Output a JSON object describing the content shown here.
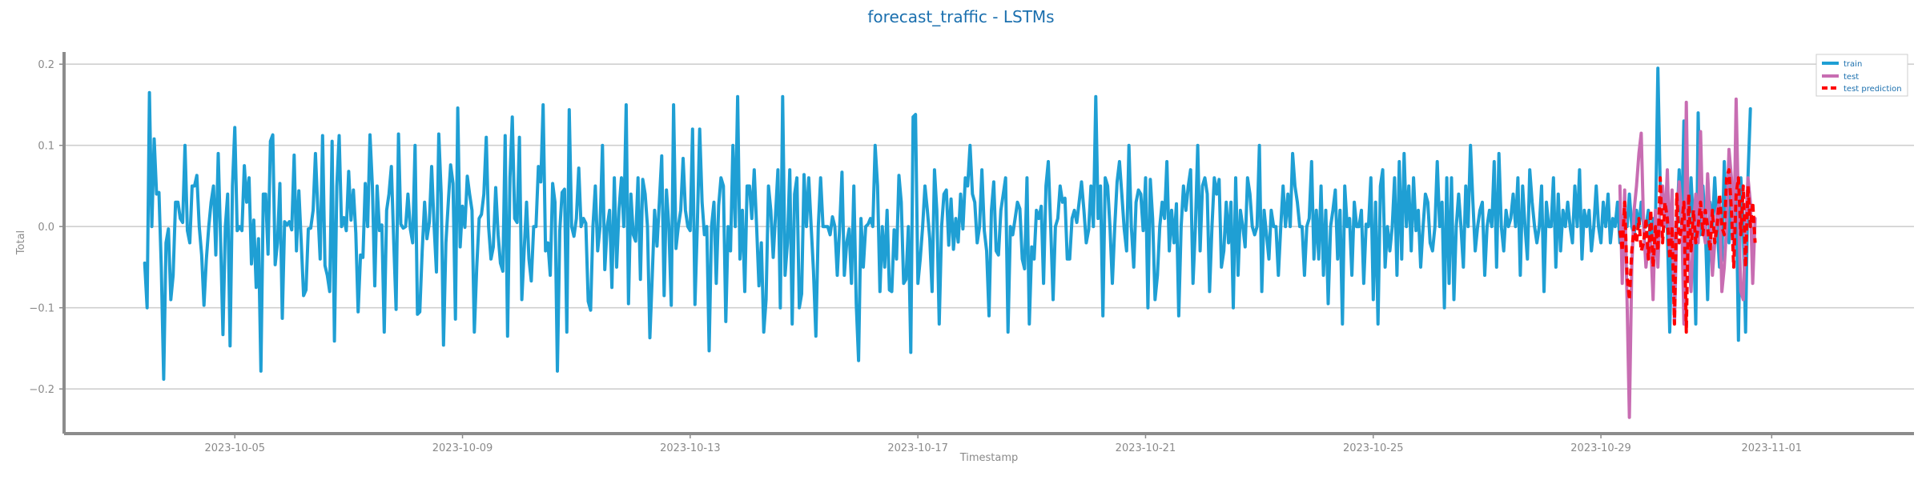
{
  "chart_data": {
    "type": "line",
    "title": "forecast_traffic - LSTMs",
    "xlabel": "Timestamp",
    "ylabel": "Total",
    "ylim": [
      -0.255,
      0.215
    ],
    "xlim": [
      "2023-10-02T00:00",
      "2023-11-03T12:00"
    ],
    "grid": "horizontal",
    "legend_position": "top-right",
    "y_ticks": [
      0.2,
      0.1,
      0.0,
      -0.1,
      -0.2
    ],
    "y_tick_labels": [
      "0.2",
      "0.1",
      "0.0",
      "−0.1",
      "−0.2"
    ],
    "x_ticks": [
      "2023-10-05",
      "2023-10-09",
      "2023-10-13",
      "2023-10-17",
      "2023-10-21",
      "2023-10-25",
      "2023-10-29",
      "2023-11-01"
    ],
    "series": [
      {
        "name": "train",
        "color": "#1f9fd4",
        "style": "solid",
        "start": "2023-10-03T10:00",
        "step_hours": 1,
        "values": [
          -0.045,
          -0.1,
          0.165,
          0.0,
          0.108,
          0.04,
          0.042,
          -0.05,
          -0.188,
          -0.02,
          -0.003,
          -0.09,
          -0.06,
          0.03,
          0.03,
          0.01,
          0.005,
          0.1,
          -0.005,
          -0.02,
          0.05,
          0.05,
          0.063,
          0.0,
          -0.035,
          -0.097,
          -0.04,
          0.0,
          0.03,
          0.05,
          -0.035,
          0.09,
          -0.018,
          -0.133,
          0.0,
          0.04,
          -0.147,
          0.05,
          0.122,
          -0.005,
          0.0,
          -0.005,
          0.075,
          0.03,
          0.06,
          -0.046,
          0.008,
          -0.075,
          -0.015,
          -0.178,
          0.04,
          0.04,
          -0.034,
          0.105,
          0.113,
          -0.047,
          -0.02,
          0.053,
          -0.113,
          0.006,
          0.002,
          0.006,
          -0.004,
          0.088,
          -0.03,
          0.044,
          -0.02,
          -0.085,
          -0.078,
          -0.003,
          -0.002,
          0.02,
          0.09,
          0.02,
          -0.04,
          0.112,
          -0.048,
          -0.06,
          -0.08,
          0.105,
          -0.141,
          0.05,
          0.112,
          0.0,
          0.011,
          -0.005,
          0.068,
          0.008,
          0.045,
          -0.008,
          -0.105,
          -0.035,
          -0.038,
          0.053,
          0.0,
          0.113,
          0.05,
          -0.073,
          0.05,
          -0.005,
          0.002,
          -0.13,
          0.02,
          0.04,
          0.074,
          -0.02,
          -0.102,
          0.114,
          0.003,
          -0.002,
          0.0,
          0.04,
          -0.003,
          -0.02,
          0.1,
          -0.108,
          -0.105,
          -0.03,
          0.03,
          -0.015,
          0.005,
          0.074,
          0.002,
          -0.056,
          0.114,
          0.041,
          -0.146,
          -0.02,
          0.03,
          0.076,
          0.053,
          -0.114,
          0.146,
          -0.025,
          0.025,
          -0.001,
          0.062,
          0.04,
          0.02,
          -0.13,
          -0.05,
          0.01,
          0.015,
          0.04,
          0.11,
          0.0,
          -0.04,
          -0.025,
          0.048,
          -0.01,
          -0.045,
          -0.055,
          0.112,
          -0.135,
          0.06,
          0.135,
          0.01,
          0.005,
          0.11,
          -0.09,
          -0.03,
          0.03,
          -0.04,
          -0.067,
          0.0,
          0.0,
          0.074,
          0.055,
          0.15,
          -0.03,
          -0.02,
          -0.06,
          0.053,
          0.03,
          -0.178,
          -0.005,
          0.042,
          0.046,
          -0.13,
          0.144,
          0.0,
          -0.012,
          0.01,
          0.072,
          0.0,
          0.01,
          0.004,
          -0.092,
          -0.103,
          0.0,
          0.05,
          -0.03,
          0.0,
          0.1,
          -0.053,
          0.0,
          0.02,
          -0.075,
          0.06,
          -0.05,
          0.022,
          0.06,
          0.0,
          0.15,
          -0.095,
          0.04,
          -0.01,
          -0.018,
          0.06,
          -0.065,
          0.058,
          0.04,
          0.0,
          -0.137,
          -0.06,
          0.02,
          -0.024,
          0.03,
          0.087,
          -0.085,
          0.045,
          0.0,
          -0.097,
          0.15,
          -0.027,
          0.0,
          0.02,
          0.084,
          0.02,
          0.0,
          -0.005,
          0.12,
          -0.096,
          0.0,
          0.12,
          0.03,
          -0.01,
          0.0,
          -0.153,
          0.0,
          0.03,
          -0.07,
          0.026,
          0.06,
          0.05,
          -0.117,
          0.0,
          -0.03,
          0.1,
          0.0,
          0.16,
          -0.04,
          0.02,
          -0.08,
          0.05,
          0.05,
          0.01,
          0.07,
          0.0,
          -0.073,
          -0.02,
          -0.13,
          -0.09,
          0.05,
          0.02,
          -0.038,
          0.016,
          0.07,
          -0.1,
          0.16,
          -0.06,
          -0.02,
          0.07,
          -0.12,
          0.04,
          0.06,
          -0.1,
          -0.083,
          0.064,
          0.0,
          0.06,
          0.0,
          -0.055,
          -0.135,
          0.0,
          0.06,
          0.0,
          0.0,
          0.0,
          -0.01,
          0.012,
          0.0,
          -0.06,
          -0.003,
          0.067,
          -0.06,
          -0.02,
          -0.003,
          -0.07,
          0.05,
          -0.095,
          -0.165,
          0.01,
          -0.05,
          0.0,
          0.003,
          0.01,
          0.0,
          0.1,
          0.05,
          -0.08,
          0.0,
          -0.05,
          0.02,
          -0.078,
          -0.08,
          -0.004,
          -0.04,
          0.063,
          0.03,
          -0.07,
          -0.065,
          0.0,
          -0.155,
          0.135,
          0.138,
          -0.07,
          -0.04,
          0.0,
          0.05,
          0.02,
          -0.015,
          -0.08,
          0.07,
          0.02,
          -0.12,
          0.0,
          0.04,
          0.045,
          -0.023,
          0.034,
          -0.028,
          0.01,
          -0.019,
          0.04,
          -0.003,
          0.06,
          0.05,
          0.1,
          0.04,
          0.03,
          -0.02,
          0.0,
          0.07,
          -0.005,
          -0.03,
          -0.11,
          0.02,
          0.055,
          -0.03,
          -0.035,
          0.02,
          0.04,
          0.06,
          -0.13,
          0.0,
          -0.01,
          0.01,
          0.03,
          0.022,
          -0.04,
          -0.052,
          0.06,
          -0.12,
          -0.025,
          -0.04,
          0.02,
          0.01,
          0.025,
          -0.07,
          0.05,
          0.08,
          0.0,
          -0.09,
          0.0,
          0.01,
          0.05,
          0.03,
          0.035,
          -0.04,
          -0.04,
          0.01,
          0.02,
          0.005,
          0.03,
          0.055,
          0.02,
          -0.02,
          -0.004,
          0.05,
          0.0,
          0.16,
          0.01,
          0.05,
          -0.11,
          0.06,
          0.05,
          0.0,
          -0.07,
          0.0,
          0.055,
          0.08,
          0.04,
          -0.003,
          -0.03,
          0.1,
          0.0,
          -0.05,
          0.03,
          0.045,
          0.04,
          -0.005,
          0.06,
          -0.1,
          0.058,
          0.01,
          -0.09,
          -0.06,
          0.0,
          0.03,
          0.01,
          0.08,
          -0.03,
          0.02,
          -0.02,
          0.028,
          -0.11,
          0.0,
          0.05,
          0.02,
          0.05,
          0.07,
          -0.07,
          0.0,
          0.1,
          -0.03,
          0.05,
          0.06,
          0.04,
          -0.08,
          0.0,
          0.06,
          0.04,
          0.058,
          -0.05,
          -0.03,
          0.03,
          -0.02,
          0.03,
          -0.1,
          0.06,
          -0.06,
          0.02,
          0.0,
          -0.025,
          0.06,
          0.04,
          0.0,
          -0.01,
          0.0,
          0.1,
          -0.08,
          0.02,
          -0.01,
          -0.04,
          0.02,
          0.0,
          0.0,
          -0.06,
          0.0,
          0.05,
          0.0,
          0.04,
          0.0,
          0.09,
          0.05,
          0.03,
          0.0,
          0.0,
          -0.06,
          0.0,
          0.01,
          0.08,
          -0.04,
          0.02,
          -0.04,
          0.05,
          -0.06,
          0.02,
          -0.095,
          0.0,
          0.02,
          0.045,
          -0.04,
          0.02,
          -0.12,
          0.05,
          0.0,
          0.01,
          -0.06,
          0.03,
          0.0,
          0.0,
          0.02,
          -0.07,
          0.003,
          0.0,
          0.06,
          -0.09,
          0.03,
          -0.12,
          0.05,
          0.07,
          -0.05,
          0.0,
          -0.03,
          0.0,
          0.06,
          -0.06,
          0.08,
          -0.04,
          0.09,
          0.0,
          0.05,
          -0.03,
          0.06,
          -0.005,
          0.02,
          -0.05,
          0.0,
          0.04,
          0.03,
          -0.02,
          -0.03,
          0.0,
          0.08,
          0.0,
          0.03,
          -0.1,
          0.06,
          -0.07,
          0.06,
          -0.09,
          0.0,
          0.04,
          0.0,
          -0.05,
          0.05,
          0.0,
          0.1,
          0.03,
          -0.03,
          0.0,
          0.02,
          0.03,
          -0.06,
          0.0,
          0.02,
          0.0,
          0.08,
          -0.05,
          0.09,
          0.0,
          -0.03,
          0.02,
          0.0,
          0.01,
          0.04,
          0.0,
          0.06,
          -0.06,
          0.05,
          0.0,
          -0.04,
          0.07,
          0.03,
          0.0,
          -0.02,
          0.0,
          0.05,
          -0.08,
          0.03,
          0.0,
          0.0,
          0.06,
          -0.05,
          0.04,
          -0.03,
          0.02,
          0.0,
          0.03,
          0.0,
          -0.02,
          0.05,
          0.0,
          0.07,
          -0.04,
          0.02,
          0.0,
          0.02,
          -0.03,
          0.0,
          0.05,
          0.0,
          -0.02,
          0.03,
          0.0,
          0.04,
          -0.02,
          0.01,
          0.0,
          0.03,
          -0.02,
          0.0,
          0.02,
          0.0,
          0.04,
          0.0,
          -0.01,
          0.02,
          0.0,
          0.03,
          0.0,
          0.0,
          0.02,
          -0.02,
          0.01,
          0.0,
          0.195,
          0.05,
          0.04,
          0.03,
          0.0,
          -0.13,
          0.0,
          -0.04,
          0.0,
          0.07,
          0.0,
          0.13,
          -0.04,
          0.0,
          0.06,
          0.0,
          -0.12,
          0.14,
          -0.01,
          0.05,
          0.0,
          -0.09,
          0.03,
          0.0,
          0.06,
          0.0,
          -0.05,
          -0.04,
          0.08,
          0.0,
          -0.02,
          0.06,
          0.0,
          0.05,
          -0.14,
          0.06,
          0.0,
          -0.13,
          0.06,
          0.145
        ]
      },
      {
        "name": "test",
        "color": "#c86db2",
        "style": "solid",
        "start": "2023-10-29T08:00",
        "step_hours": 1,
        "values": [
          0.05,
          -0.07,
          0.045,
          -0.09,
          -0.235,
          -0.05,
          0.02,
          0.05,
          0.09,
          0.115,
          0.0,
          -0.05,
          -0.02,
          -0.02,
          -0.09,
          0.02,
          -0.05,
          0.03,
          0.05,
          0.0,
          0.07,
          -0.03,
          0.045,
          -0.12,
          0.0,
          0.055,
          0.02,
          -0.12,
          0.153,
          -0.04,
          -0.08,
          0.0,
          0.04,
          -0.02,
          0.117,
          0.0,
          -0.02,
          0.065,
          0.01,
          -0.06,
          -0.02,
          0.02,
          0.03,
          -0.08,
          -0.05,
          0.0,
          0.095,
          0.06,
          -0.03,
          0.157,
          0.02,
          -0.08,
          -0.09,
          0.0,
          0.06,
          0.03,
          -0.07,
          0.01
        ]
      },
      {
        "name": "test prediction",
        "color": "#ff0000",
        "style": "dashed",
        "start": "2023-10-29T08:00",
        "step_hours": 1,
        "values": [
          -0.005,
          -0.03,
          0.03,
          -0.06,
          -0.09,
          -0.03,
          0.0,
          -0.02,
          0.01,
          -0.03,
          -0.02,
          0.01,
          -0.04,
          0.02,
          -0.05,
          0.0,
          -0.03,
          0.06,
          -0.02,
          0.03,
          0.01,
          -0.04,
          0.0,
          -0.12,
          0.04,
          -0.02,
          0.0,
          0.03,
          -0.13,
          0.04,
          -0.03,
          0.02,
          -0.02,
          0.0,
          0.03,
          -0.01,
          0.02,
          0.0,
          -0.03,
          0.02,
          -0.02,
          0.0,
          0.04,
          0.0,
          -0.01,
          0.06,
          0.07,
          0.02,
          -0.05,
          0.04,
          0.06,
          -0.01,
          0.05,
          -0.05,
          0.05,
          0.0,
          0.03,
          -0.02
        ]
      }
    ]
  }
}
